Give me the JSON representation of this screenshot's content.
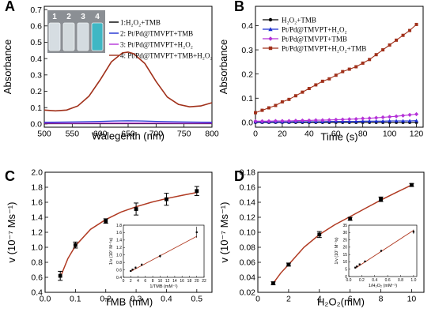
{
  "chart_data": [
    {
      "panel": "A",
      "type": "line",
      "xlabel": "Walegenth (nm)",
      "ylabel": "Absorbance",
      "xlim": [
        500,
        800
      ],
      "ylim": [
        -0.02,
        0.72
      ],
      "xticks": [
        "500",
        "550",
        "600",
        "650",
        "700",
        "750",
        "800"
      ],
      "yticks": [
        "0.0",
        "0.1",
        "0.2",
        "0.3",
        "0.4",
        "0.5",
        "0.6",
        "0.7"
      ],
      "inset_photo": {
        "vial_labels": [
          "1",
          "2",
          "3",
          "4"
        ],
        "vial_colors": [
          "#d6dde2",
          "#d3dadd",
          "#d4dbe0",
          "#3fb7c4"
        ]
      },
      "series": [
        {
          "name": "1:H₂O₂+TMB",
          "color": "#000000",
          "x": [
            500,
            550,
            600,
            650,
            700,
            750,
            800
          ],
          "y": [
            0.002,
            0.002,
            0.002,
            0.002,
            0.002,
            0.002,
            0.002
          ]
        },
        {
          "name": "2: Pt/Pd@TMVPT+TMB",
          "color": "#1c2fd1",
          "x": [
            500,
            550,
            600,
            625,
            650,
            675,
            700,
            750,
            800
          ],
          "y": [
            0.01,
            0.012,
            0.016,
            0.018,
            0.019,
            0.018,
            0.016,
            0.012,
            0.01
          ]
        },
        {
          "name": "3: Pt/Pd@TMVPT+H₂O₂",
          "color": "#b532d8",
          "x": [
            500,
            550,
            600,
            650,
            700,
            750,
            800
          ],
          "y": [
            0.004,
            0.004,
            0.005,
            0.005,
            0.005,
            0.004,
            0.004
          ]
        },
        {
          "name": "4: Pt/Pd@TMVPT+TMB+H₂O₂",
          "color": "#a0301a",
          "x": [
            500,
            520,
            540,
            560,
            580,
            600,
            620,
            640,
            650,
            660,
            680,
            700,
            720,
            740,
            760,
            780,
            800
          ],
          "y": [
            0.085,
            0.08,
            0.085,
            0.11,
            0.17,
            0.27,
            0.38,
            0.435,
            0.44,
            0.43,
            0.37,
            0.26,
            0.165,
            0.12,
            0.105,
            0.11,
            0.13
          ]
        }
      ]
    },
    {
      "panel": "B",
      "type": "line",
      "xlabel": "Time (s)",
      "ylabel": "Absorbance",
      "xlim": [
        0,
        125
      ],
      "ylim": [
        -0.02,
        0.48
      ],
      "xticks": [
        "0",
        "20",
        "40",
        "60",
        "80",
        "100",
        "120"
      ],
      "yticks": [
        "0.0",
        "0.1",
        "0.2",
        "0.3",
        "0.4"
      ],
      "series": [
        {
          "name": "H₂O₂+TMB",
          "color": "#000000",
          "marker": "circle",
          "x": [
            0,
            5,
            10,
            15,
            20,
            25,
            30,
            35,
            40,
            45,
            50,
            55,
            60,
            65,
            70,
            75,
            80,
            85,
            90,
            95,
            100,
            105,
            110,
            115,
            120
          ],
          "y": [
            0,
            0,
            0,
            0,
            0,
            0,
            0,
            0,
            0,
            0,
            0,
            0,
            0,
            0,
            0,
            0,
            0,
            0,
            0,
            0,
            0,
            0,
            0,
            0,
            0
          ]
        },
        {
          "name": "Pt/Pd@TMVPT+H₂O₂",
          "color": "#1c2fd1",
          "marker": "triangle",
          "x": [
            0,
            5,
            10,
            15,
            20,
            25,
            30,
            35,
            40,
            45,
            50,
            55,
            60,
            65,
            70,
            75,
            80,
            85,
            90,
            95,
            100,
            105,
            110,
            115,
            120
          ],
          "y": [
            0.002,
            0.002,
            0.002,
            0.002,
            0.002,
            0.002,
            0.003,
            0.003,
            0.003,
            0.003,
            0.003,
            0.004,
            0.004,
            0.004,
            0.004,
            0.004,
            0.005,
            0.005,
            0.005,
            0.005,
            0.006,
            0.006,
            0.006,
            0.006,
            0.007
          ]
        },
        {
          "name": "Pt/Pd@TMVPT+TMB",
          "color": "#b532d8",
          "marker": "diamond",
          "x": [
            0,
            5,
            10,
            15,
            20,
            25,
            30,
            35,
            40,
            45,
            50,
            55,
            60,
            65,
            70,
            75,
            80,
            85,
            90,
            95,
            100,
            105,
            110,
            115,
            120
          ],
          "y": [
            0.005,
            0.005,
            0.005,
            0.006,
            0.006,
            0.006,
            0.007,
            0.008,
            0.008,
            0.009,
            0.009,
            0.01,
            0.011,
            0.012,
            0.013,
            0.014,
            0.016,
            0.017,
            0.019,
            0.021,
            0.023,
            0.025,
            0.028,
            0.031,
            0.034
          ]
        },
        {
          "name": "Pt/Pd@TMVPT+H₂O₂+TMB",
          "color": "#a0301a",
          "marker": "square",
          "x": [
            0,
            5,
            10,
            15,
            20,
            25,
            30,
            35,
            40,
            45,
            50,
            55,
            60,
            65,
            70,
            75,
            80,
            85,
            90,
            95,
            100,
            105,
            110,
            115,
            120
          ],
          "y": [
            0.04,
            0.05,
            0.06,
            0.07,
            0.085,
            0.095,
            0.11,
            0.125,
            0.14,
            0.155,
            0.17,
            0.18,
            0.195,
            0.21,
            0.22,
            0.23,
            0.245,
            0.26,
            0.28,
            0.3,
            0.32,
            0.34,
            0.36,
            0.38,
            0.405
          ]
        }
      ]
    },
    {
      "panel": "C",
      "type": "scatter",
      "xlabel": "TMB (mM)",
      "ylabel": "v (10⁻⁷ Ms⁻¹)",
      "xlim": [
        0,
        0.55
      ],
      "ylim": [
        0.4,
        2.0
      ],
      "xticks": [
        "0.0",
        "0.1",
        "0.2",
        "0.3",
        "0.4",
        "0.5"
      ],
      "yticks": [
        "0.4",
        "0.6",
        "0.8",
        "1.0",
        "1.2",
        "1.4",
        "1.6",
        "1.8",
        "2.0"
      ],
      "points": {
        "x": [
          0.05,
          0.1,
          0.2,
          0.3,
          0.4,
          0.5
        ],
        "y": [
          0.62,
          1.03,
          1.35,
          1.51,
          1.64,
          1.75
        ],
        "err": [
          0.06,
          0.04,
          0.03,
          0.08,
          0.08,
          0.06
        ]
      },
      "fit": {
        "x": [
          0.05,
          0.075,
          0.1,
          0.15,
          0.2,
          0.25,
          0.3,
          0.35,
          0.4,
          0.45,
          0.5
        ],
        "y": [
          0.6,
          0.85,
          1.02,
          1.24,
          1.37,
          1.47,
          1.54,
          1.6,
          1.65,
          1.69,
          1.73
        ]
      },
      "inset": {
        "xlabel": "1/TMB (mM⁻¹)",
        "ylabel": "1/v (10⁷ M⁻¹s)",
        "xlim": [
          0,
          22
        ],
        "ylim": [
          0.4,
          1.8
        ],
        "xticks": [
          "0",
          "2",
          "4",
          "6",
          "8",
          "10",
          "12",
          "14",
          "16",
          "18",
          "20",
          "22"
        ],
        "yticks": [
          "0.4",
          "0.6",
          "0.8",
          "1.0",
          "1.2",
          "1.4",
          "1.6",
          "1.8"
        ],
        "points": {
          "x": [
            2,
            2.5,
            3.33,
            5,
            10,
            20
          ],
          "y": [
            0.57,
            0.61,
            0.66,
            0.74,
            0.97,
            1.61
          ],
          "err": [
            0.02,
            0.02,
            0.03,
            0.03,
            0.04,
            0.15
          ]
        },
        "fit": {
          "x": [
            2,
            20
          ],
          "y": [
            0.56,
            1.5
          ]
        }
      }
    },
    {
      "panel": "D",
      "type": "scatter",
      "xlabel": "H₂O₂(mM)",
      "ylabel": "v (10⁻⁷ Ms⁻¹)",
      "xlim": [
        0,
        10.8
      ],
      "ylim": [
        0.02,
        0.18
      ],
      "xticks": [
        "0",
        "2",
        "4",
        "6",
        "8",
        "10"
      ],
      "yticks": [
        "0.02",
        "0.04",
        "0.06",
        "0.08",
        "0.10",
        "0.12",
        "0.14",
        "0.16",
        "0.18"
      ],
      "points": {
        "x": [
          1,
          2,
          4,
          6,
          8,
          10
        ],
        "y": [
          0.032,
          0.057,
          0.097,
          0.118,
          0.144,
          0.163
        ],
        "err": [
          0.002,
          0.002,
          0.004,
          0.002,
          0.003,
          0.002
        ]
      },
      "fit": {
        "x": [
          1,
          1.5,
          2,
          3,
          4,
          5,
          6,
          7,
          8,
          9,
          10
        ],
        "y": [
          0.032,
          0.046,
          0.057,
          0.08,
          0.097,
          0.11,
          0.121,
          0.132,
          0.143,
          0.153,
          0.163
        ]
      },
      "inset": {
        "xlabel": "1/H₂O₂ (mM⁻¹)",
        "ylabel": "1/v (10⁷ M⁻¹s)",
        "xlim": [
          0,
          1.05
        ],
        "ylim": [
          0,
          35
        ],
        "xticks": [
          "0.0",
          "0.2",
          "0.4",
          "0.6",
          "0.8",
          "1.0"
        ],
        "yticks": [
          "0",
          "5",
          "10",
          "15",
          "20",
          "25",
          "30",
          "35"
        ],
        "points": {
          "x": [
            0.1,
            0.125,
            0.167,
            0.25,
            0.5,
            1.0
          ],
          "y": [
            6.1,
            6.9,
            8.3,
            10.3,
            17.5,
            30.5
          ],
          "err": [
            0.3,
            0.3,
            0.3,
            0.4,
            0.6,
            1.5
          ]
        },
        "fit": {
          "x": [
            0.1,
            1.0
          ],
          "y": [
            5.6,
            31.5
          ]
        }
      }
    }
  ]
}
